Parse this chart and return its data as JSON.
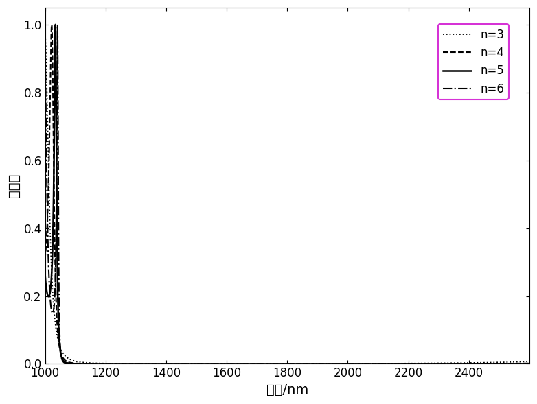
{
  "title": "",
  "xlabel": "波长/nm",
  "ylabel": "透射率",
  "xlim": [
    1000,
    2600
  ],
  "ylim": [
    0.0,
    1.05
  ],
  "xticks": [
    1000,
    1200,
    1400,
    1600,
    1800,
    2000,
    2200,
    2400
  ],
  "yticks": [
    0.0,
    0.2,
    0.4,
    0.6,
    0.8,
    1.0
  ],
  "legend_labels": [
    "n=3",
    "n=4",
    "n=5",
    "n=6"
  ],
  "legend_styles": [
    "dotted",
    "dashed",
    "solid",
    "dashdot"
  ],
  "line_color": "#000000",
  "background_color": "#ffffff",
  "legend_edge_color": "#cc00cc",
  "figsize": [
    7.82,
    5.89
  ],
  "dpi": 100,
  "n1": 1.0,
  "n2": 5.0,
  "lambda0": 1550.0,
  "n_periods_list": [
    3,
    4,
    5,
    6
  ],
  "lw_dotted": 1.3,
  "lw_dashed": 1.5,
  "lw_solid": 1.8,
  "lw_dashdot": 1.5
}
